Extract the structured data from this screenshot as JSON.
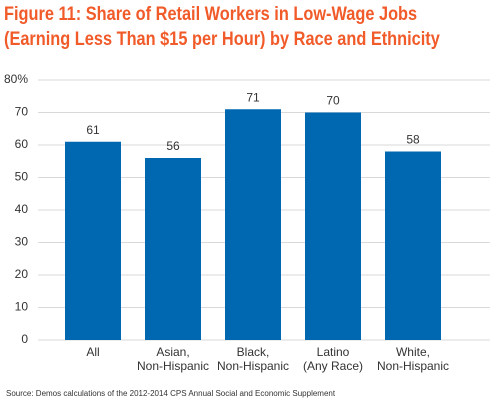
{
  "chart_data": {
    "type": "bar",
    "title": "Figure 11: Share of Retail Workers in Low-Wage Jobs\n(Earning Less Than $15 per Hour) by Race and Ethnicity",
    "categories": [
      [
        "All"
      ],
      [
        "Asian,",
        "Non-Hispanic"
      ],
      [
        "Black,",
        "Non-Hispanic"
      ],
      [
        "Latino",
        "(Any Race)"
      ],
      [
        "White,",
        "Non-Hispanic"
      ]
    ],
    "values": [
      61,
      56,
      71,
      70,
      58
    ],
    "color": "#0067b1",
    "ylim": [
      0,
      80
    ],
    "yticks": [
      0,
      10,
      20,
      30,
      40,
      50,
      60,
      70,
      {
        "value": 80,
        "label": "80%"
      }
    ],
    "grid": true,
    "source": "Source: Demos calculations of the 2012-2014 CPS Annual Social and Economic Supplement"
  }
}
